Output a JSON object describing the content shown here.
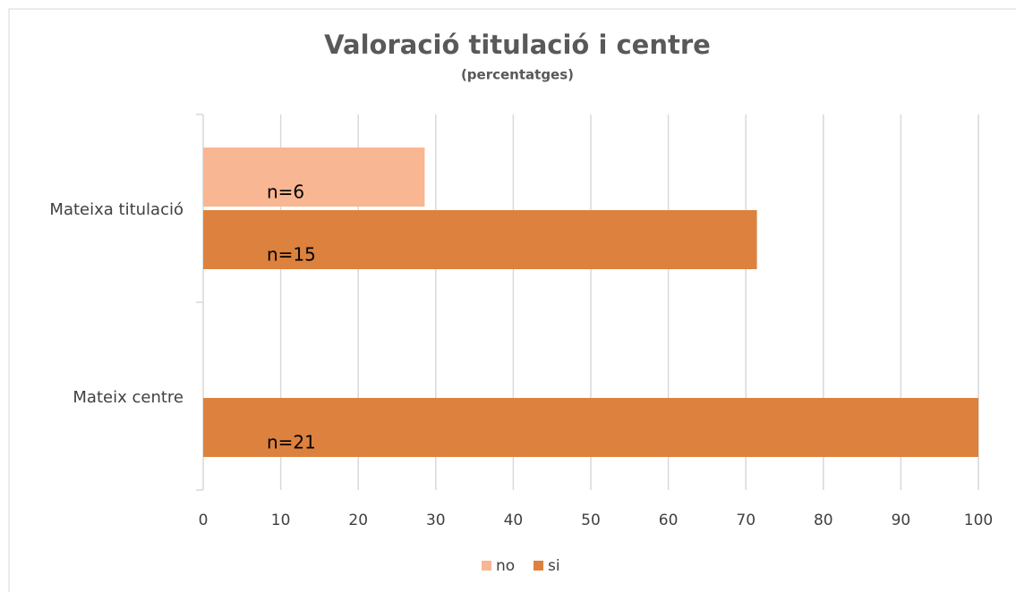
{
  "chart_data": {
    "type": "hbar",
    "title": "Valoració titulació i centre",
    "subtitle": "(percentatges)",
    "categories": [
      "Mateixa titulació",
      "Mateix centre"
    ],
    "series": [
      {
        "name": "no",
        "color": "#f8b692",
        "values": [
          28.57,
          0
        ],
        "bar_labels": [
          "n=6",
          null
        ]
      },
      {
        "name": "si",
        "color": "#dc823e",
        "values": [
          71.43,
          100
        ],
        "bar_labels": [
          "n=15",
          "n=21"
        ]
      }
    ],
    "xlim": [
      0,
      100
    ],
    "xticks": [
      0,
      10,
      20,
      30,
      40,
      50,
      60,
      70,
      80,
      90,
      100
    ],
    "grid": true,
    "legend": "bottom"
  }
}
